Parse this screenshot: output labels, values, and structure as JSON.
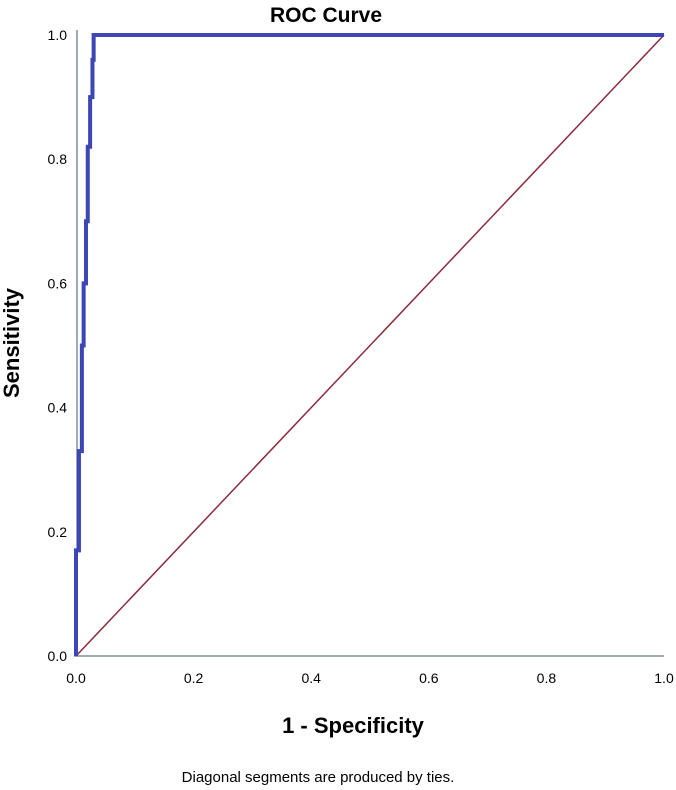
{
  "chart_data": {
    "type": "line",
    "title": "ROC Curve",
    "xlabel": "1 - Specificity",
    "ylabel": "Sensitivity",
    "xlim": [
      0,
      1
    ],
    "ylim": [
      0,
      1
    ],
    "x_ticks": [
      "0.0",
      "0.2",
      "0.4",
      "0.6",
      "0.8",
      "1.0"
    ],
    "y_ticks": [
      "0.0",
      "0.2",
      "0.4",
      "0.6",
      "0.8",
      "1.0"
    ],
    "grid": false,
    "footnote": "Diagonal segments are produced by ties.",
    "series": [
      {
        "color": "#3c46b4",
        "x": [
          0.0,
          0.0,
          0.005,
          0.005,
          0.01,
          0.01,
          0.013,
          0.013,
          0.017,
          0.017,
          0.02,
          0.02,
          0.024,
          0.024,
          0.028,
          0.028,
          0.03,
          0.03,
          1.0
        ],
        "y": [
          0.0,
          0.17,
          0.17,
          0.33,
          0.33,
          0.5,
          0.5,
          0.6,
          0.6,
          0.7,
          0.7,
          0.82,
          0.82,
          0.9,
          0.9,
          0.96,
          0.96,
          1.0,
          1.0
        ]
      },
      {
        "color": "#8b2b3e",
        "x": [
          0,
          1
        ],
        "y": [
          0,
          1
        ]
      }
    ]
  }
}
